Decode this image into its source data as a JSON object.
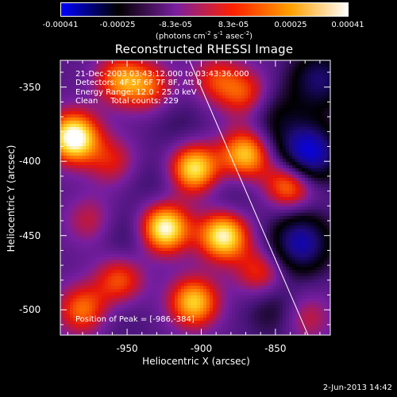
{
  "colorbar": {
    "tick_labels": [
      "-0.00041",
      "-0.00025",
      "-8.3e-05",
      "8.3e-05",
      "0.00025",
      "0.00041"
    ],
    "units_text": "(photons cm",
    "units_exp1": "-2",
    "units_mid": " s",
    "units_exp2": "-1",
    "units_mid2": " asec",
    "units_exp3": "-2",
    "units_end": ")",
    "colors": [
      "#0000ff",
      "#000000",
      "#7a1fa0",
      "#ff2000",
      "#ffa000",
      "#ffffff"
    ]
  },
  "chart_data": {
    "type": "heatmap",
    "title": "Reconstructed RHESSI Image",
    "xlabel": "Heliocentric X (arcsec)",
    "ylabel": "Heliocentric Y (arcsec)",
    "xlim": [
      -995,
      -813
    ],
    "ylim": [
      -517,
      -332
    ],
    "xticks": [
      -950,
      -900,
      -850
    ],
    "yticks": [
      -350,
      -400,
      -450,
      -500
    ],
    "xtick_labels": [
      "-950",
      "-900",
      "-850"
    ],
    "ytick_labels": [
      "-350",
      "-400",
      "-450",
      "-500"
    ],
    "value_range": [
      -0.00041,
      0.00041
    ],
    "peak_position": [
      -986,
      -384
    ],
    "limb_line": [
      [
        -908,
        -332
      ],
      [
        -828,
        -517
      ]
    ],
    "sources": [
      {
        "x": -986,
        "y": -384,
        "v": 1.0
      },
      {
        "x": -955,
        "y": -345,
        "v": 0.55
      },
      {
        "x": -960,
        "y": -400,
        "v": 0.35
      },
      {
        "x": -935,
        "y": -350,
        "v": 0.45
      },
      {
        "x": -905,
        "y": -405,
        "v": 0.85
      },
      {
        "x": -925,
        "y": -445,
        "v": 0.95
      },
      {
        "x": -885,
        "y": -450,
        "v": 0.9
      },
      {
        "x": -870,
        "y": -395,
        "v": 0.75
      },
      {
        "x": -840,
        "y": -415,
        "v": 0.7
      },
      {
        "x": -905,
        "y": -495,
        "v": 0.75
      },
      {
        "x": -955,
        "y": -480,
        "v": 0.5
      },
      {
        "x": -980,
        "y": -500,
        "v": 0.55
      },
      {
        "x": -860,
        "y": -475,
        "v": 0.45
      },
      {
        "x": -870,
        "y": -355,
        "v": 0.45
      },
      {
        "x": -890,
        "y": -345,
        "v": 0.4
      },
      {
        "x": -975,
        "y": -440,
        "v": 0.3
      },
      {
        "x": -830,
        "y": -505,
        "v": 0.35
      },
      {
        "x": -930,
        "y": -415,
        "v": -0.15
      },
      {
        "x": -950,
        "y": -450,
        "v": -0.2
      },
      {
        "x": -880,
        "y": -425,
        "v": -0.15
      },
      {
        "x": -850,
        "y": -370,
        "v": -0.3
      },
      {
        "x": -915,
        "y": -375,
        "v": -0.15
      },
      {
        "x": -955,
        "y": -505,
        "v": -0.1
      }
    ],
    "negative_sources": [
      {
        "x": -828,
        "y": -395,
        "v": -1.0
      },
      {
        "x": -833,
        "y": -455,
        "v": -0.8
      },
      {
        "x": -820,
        "y": -345,
        "v": -0.6
      },
      {
        "x": -850,
        "y": -500,
        "v": -0.3
      }
    ]
  },
  "annotations": {
    "time": "21-Dec-2003 03:43:12.000 to 03:43:36.000",
    "detectors": "Detectors: 4F 5F 6F 7F 8F, Att 0",
    "energy": "Energy Range: 12.0 - 25.0 keV",
    "clean": "Clean     Total counts: 229",
    "peak": "Position of Peak = [-986,-384]"
  },
  "timestamp": "2-Jun-2013 14:42"
}
